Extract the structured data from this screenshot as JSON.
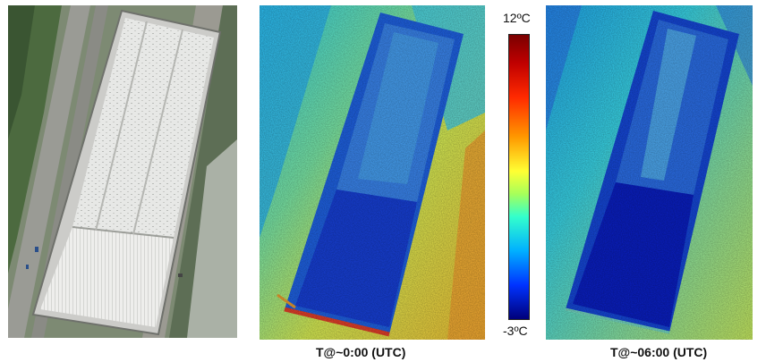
{
  "colorbar": {
    "max_label": "12ºC",
    "min_label": "-3ºC"
  },
  "captions": {
    "thermal1": "T@~0:00 (UTC)",
    "thermal2": "T@~06:00 (UTC)"
  }
}
